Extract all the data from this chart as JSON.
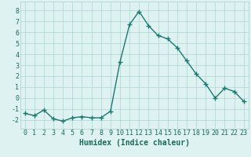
{
  "x": [
    0,
    1,
    2,
    3,
    4,
    5,
    6,
    7,
    8,
    9,
    10,
    11,
    12,
    13,
    14,
    15,
    16,
    17,
    18,
    19,
    20,
    21,
    22,
    23
  ],
  "y": [
    -1.4,
    -1.6,
    -1.1,
    -1.9,
    -2.1,
    -1.8,
    -1.7,
    -1.8,
    -1.8,
    -1.2,
    3.3,
    6.7,
    7.9,
    6.6,
    5.7,
    5.4,
    4.6,
    3.4,
    2.2,
    1.3,
    0.0,
    0.9,
    0.6,
    -0.3
  ],
  "line_color": "#1a7a6e",
  "marker": "+",
  "markersize": 4,
  "linewidth": 1.0,
  "xlabel": "Humidex (Indice chaleur)",
  "xlim": [
    -0.5,
    23.5
  ],
  "ylim": [
    -2.8,
    8.8
  ],
  "yticks": [
    -2,
    -1,
    0,
    1,
    2,
    3,
    4,
    5,
    6,
    7,
    8
  ],
  "xticks": [
    0,
    1,
    2,
    3,
    4,
    5,
    6,
    7,
    8,
    9,
    10,
    11,
    12,
    13,
    14,
    15,
    16,
    17,
    18,
    19,
    20,
    21,
    22,
    23
  ],
  "bg_color": "#dff2f2",
  "grid_color": "#aed4d4",
  "fg_color": "#1a6a5a",
  "xlabel_fontsize": 7,
  "tick_fontsize": 6,
  "markeredgewidth": 1.0
}
